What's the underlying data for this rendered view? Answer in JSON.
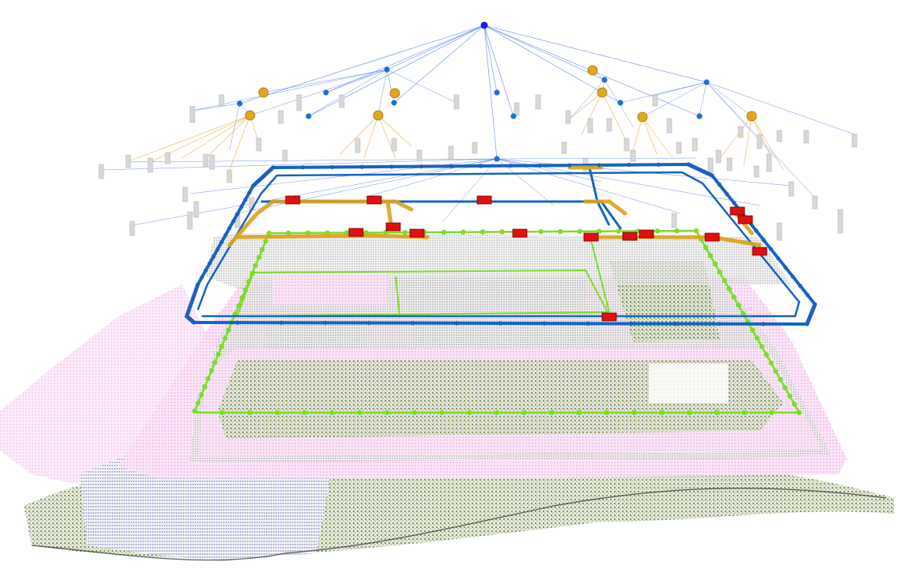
{
  "scene": {
    "colors": {
      "background": "#ffffff",
      "root_node": "#1a1ae6",
      "hub_node": "#1f6fd6",
      "room_node": "#e0a818",
      "object_box": "#d8d8d8",
      "graph_edge_blue": "#3b6fe8",
      "graph_edge_orange": "#f0a030",
      "trajectory": "#1565c0",
      "trajectory_gold": "#d9a21a",
      "agent": "#e01010",
      "place_ring": "#7ddc2a",
      "mesh_pink": "#f2b8ec",
      "mesh_gray": "#8a8a8a",
      "mesh_green": "#6b8a3a",
      "mesh_blue": "#3a3aa0"
    }
  }
}
